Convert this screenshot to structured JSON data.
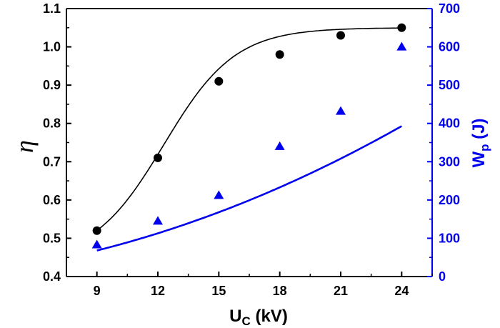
{
  "chart_data": {
    "type": "scatter",
    "xlabel": "U",
    "xlabel_sub": "C",
    "xlabel_unit": " (kV)",
    "ylabel_left": "η",
    "ylabel_right": "W",
    "ylabel_right_sub": "p",
    "ylabel_right_unit": " (J)",
    "xlim": [
      7.5,
      25.5
    ],
    "xticks": [
      9,
      12,
      15,
      18,
      21,
      24
    ],
    "ylim_left": [
      0.4,
      1.1
    ],
    "yticks_left": [
      "0.4",
      "0.5",
      "0.6",
      "0.7",
      "0.8",
      "0.9",
      "1.0",
      "1.1"
    ],
    "ylim_right": [
      0,
      700
    ],
    "yticks_right": [
      "0",
      "100",
      "200",
      "300",
      "400",
      "500",
      "600",
      "700"
    ],
    "series": [
      {
        "axis": "left",
        "marker": "circle",
        "color": "#000000",
        "x": [
          9,
          12,
          15,
          18,
          21,
          24
        ],
        "y": [
          0.52,
          0.71,
          0.91,
          0.98,
          1.03,
          1.05
        ],
        "fit": "sigmoid"
      },
      {
        "axis": "right",
        "marker": "triangle",
        "color": "#0000ee",
        "x": [
          9,
          12,
          15,
          18,
          21,
          24
        ],
        "y": [
          83,
          145,
          212,
          340,
          432,
          600
        ],
        "fit": "quadratic"
      }
    ],
    "grid": false,
    "legend": "none"
  }
}
